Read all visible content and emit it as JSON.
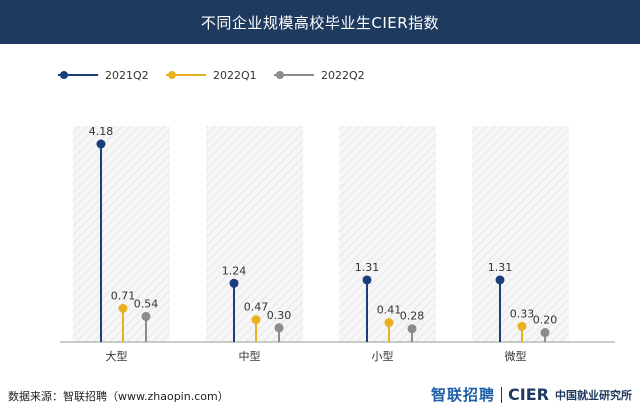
{
  "header": {
    "title": "不同企业规模高校毕业生CIER指数"
  },
  "footer": {
    "source": "数据来源：智联招聘（www.zhaopin.com）",
    "logo_zhaopin": "智联招聘",
    "logo_cier": "CIER",
    "logo_cier_cn": "中国就业研究所"
  },
  "chart_data": {
    "type": "lollipop",
    "title": "不同企业规模高校毕业生CIER指数",
    "categories": [
      "大型",
      "中型",
      "小型",
      "微型"
    ],
    "series": [
      {
        "name": "2021Q2",
        "color": "#1a3d7c",
        "values": [
          4.18,
          1.24,
          1.31,
          1.31
        ],
        "labels": [
          "4.18",
          "1.24",
          "1.31",
          "1.31"
        ]
      },
      {
        "name": "2022Q1",
        "color": "#e8b21f",
        "values": [
          0.71,
          0.47,
          0.41,
          0.33
        ],
        "labels": [
          "0.71",
          "0.47",
          "0.41",
          "0.33"
        ]
      },
      {
        "name": "2022Q2",
        "color": "#8c8c8c",
        "values": [
          0.54,
          0.3,
          0.28,
          0.2
        ],
        "labels": [
          "0.54",
          "0.30",
          "0.28",
          "0.20"
        ]
      }
    ],
    "ylim": [
      0,
      4.5
    ],
    "legend_position": "top-left",
    "grid": false
  }
}
